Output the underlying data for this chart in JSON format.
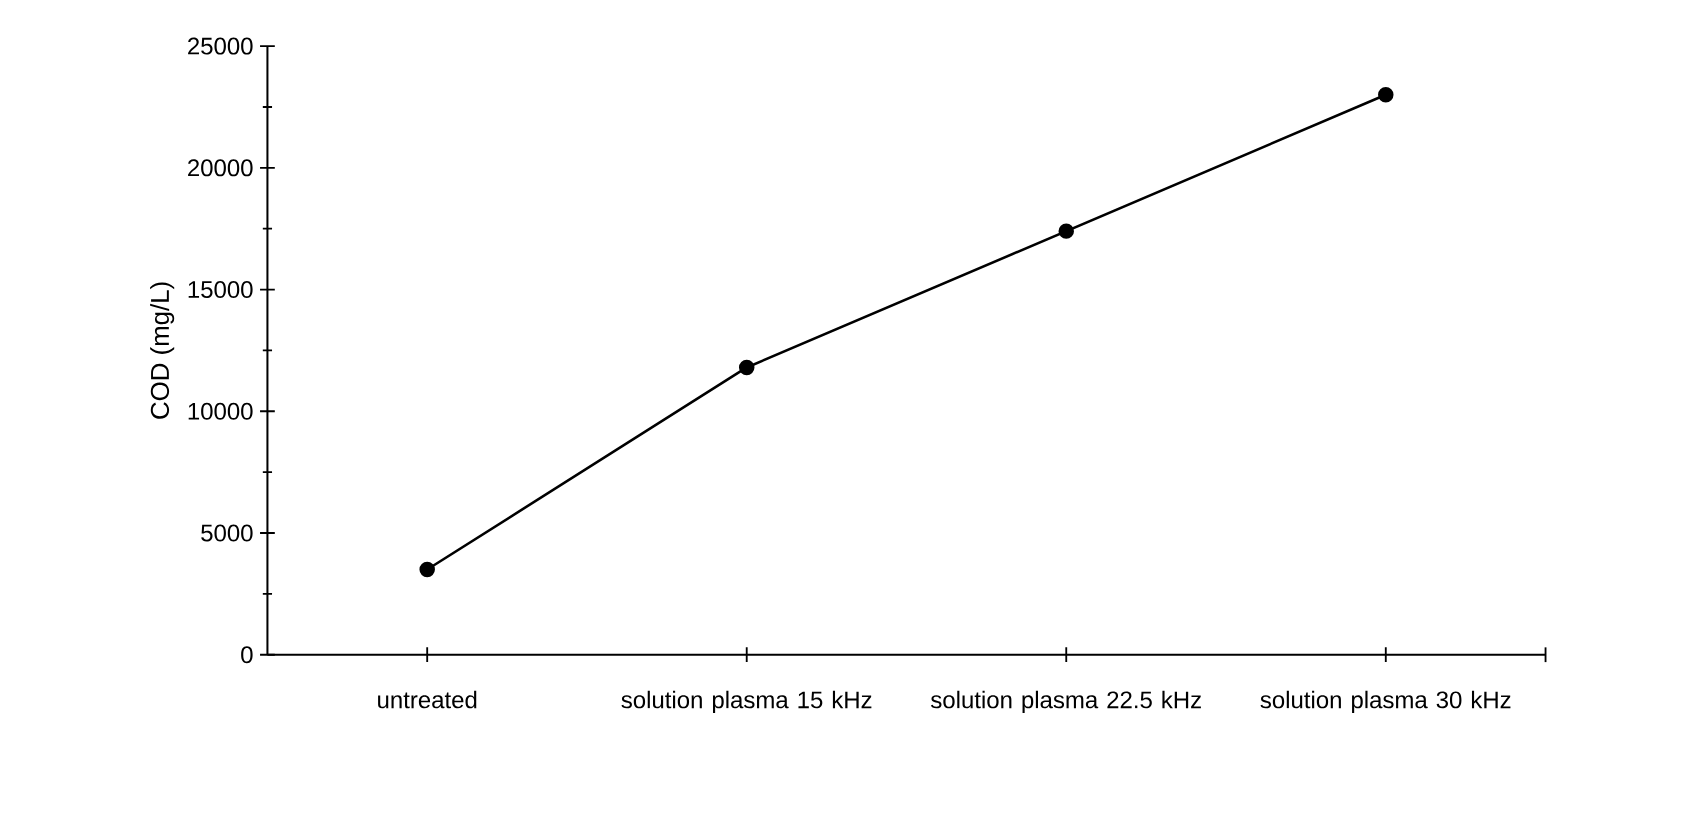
{
  "chart_data": {
    "type": "line",
    "ylabel": "COD (mg/L)",
    "categories": [
      "untreated",
      "solution plasma 15 kHz",
      "solution plasma 22.5 kHz",
      "solution plasma 30 kHz"
    ],
    "series": [
      {
        "color": "#000000",
        "values": [
          3500,
          11800,
          17400,
          23000
        ]
      }
    ],
    "ylim": [
      0,
      25000
    ],
    "yticks": [
      0,
      5000,
      10000,
      15000,
      20000,
      25000
    ],
    "grid": false,
    "legend": false,
    "marker": "circle",
    "line_style": "solid"
  }
}
